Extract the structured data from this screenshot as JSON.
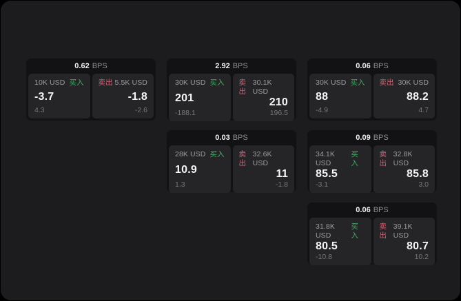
{
  "labels": {
    "bps_unit": "BPS",
    "buy": "买入",
    "sell": "卖出"
  },
  "colors": {
    "background": "#000000",
    "window_bg": "#1c1c1e",
    "card_bg": "#121214",
    "panel_bg": "#252528",
    "buy_green": "#3fae62",
    "sell_red": "#d95d72",
    "value_white": "#f5f5f6",
    "label_gray": "#9d9da1",
    "sub_gray": "#77777b"
  },
  "cards": [
    {
      "bps": "0.62",
      "buy": {
        "amount": "10K USD",
        "value": "-3.7",
        "sub": "4.3"
      },
      "sell": {
        "amount": "5.5K USD",
        "value": "-1.8",
        "sub": "-2.6"
      }
    },
    {
      "bps": "2.92",
      "buy": {
        "amount": "30K USD",
        "value": "201",
        "sub": "-188.1"
      },
      "sell": {
        "amount": "30.1K USD",
        "value": "210",
        "sub": "196.5"
      }
    },
    {
      "bps": "0.06",
      "buy": {
        "amount": "30K USD",
        "value": "88",
        "sub": "-4.9"
      },
      "sell": {
        "amount": "30K USD",
        "value": "88.2",
        "sub": "4.7"
      }
    },
    {
      "bps": "0.03",
      "buy": {
        "amount": "28K USD",
        "value": "10.9",
        "sub": "1.3"
      },
      "sell": {
        "amount": "32.6K USD",
        "value": "11",
        "sub": "-1.8"
      }
    },
    {
      "bps": "0.09",
      "buy": {
        "amount": "34.1K USD",
        "value": "85.5",
        "sub": "-3.1"
      },
      "sell": {
        "amount": "32.8K USD",
        "value": "85.8",
        "sub": "3.0"
      }
    },
    {
      "bps": "0.06",
      "buy": {
        "amount": "31.8K USD",
        "value": "80.5",
        "sub": "-10.8"
      },
      "sell": {
        "amount": "39.1K USD",
        "value": "80.7",
        "sub": "10.2"
      }
    }
  ]
}
